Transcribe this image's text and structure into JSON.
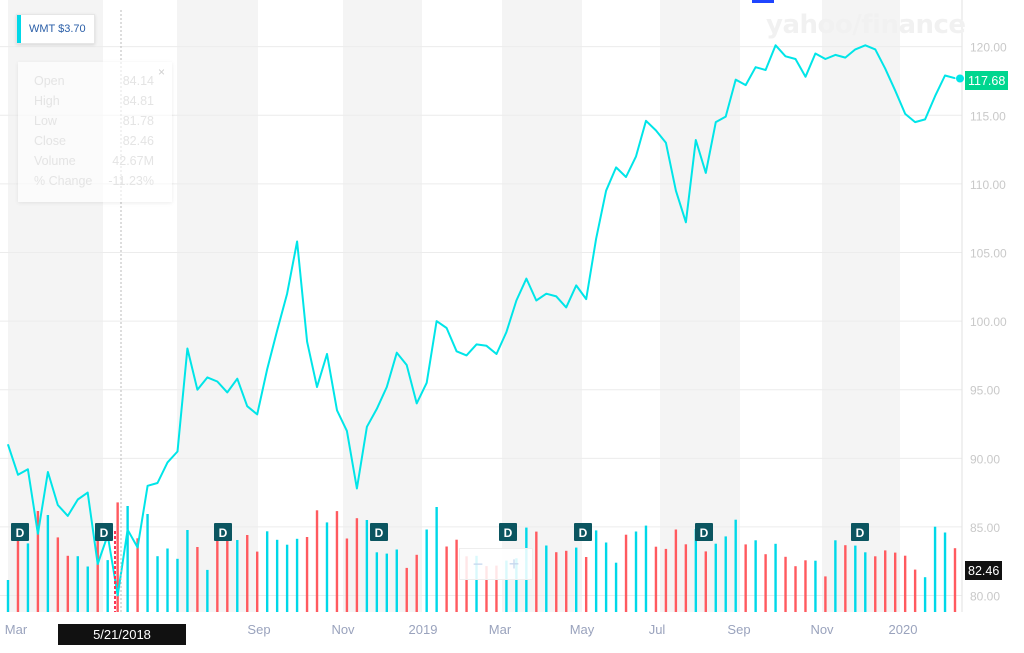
{
  "brand": {
    "watermark": "yahoo/finance"
  },
  "ticker": {
    "label": "WMT $3.70"
  },
  "tooltip": {
    "rows": [
      {
        "label": "Open",
        "value": "84.14"
      },
      {
        "label": "High",
        "value": "84.81"
      },
      {
        "label": "Low",
        "value": "81.78"
      },
      {
        "label": "Close",
        "value": "82.46"
      },
      {
        "label": "Volume",
        "value": "42.67M"
      },
      {
        "label": "% Change",
        "value": "-11.23%"
      }
    ],
    "close_glyph": "×"
  },
  "crosshair": {
    "date_label": "5/21/2018"
  },
  "zoom": {
    "minus": "−",
    "plus": "+"
  },
  "colors": {
    "line": "#00e5e8",
    "volume_up": "#00d8e8",
    "volume_down": "#ff5a5f",
    "last_tag": "#00d68f",
    "dividend": "#0b5560"
  },
  "chart_data": {
    "type": "line",
    "series": [
      {
        "values": [
          91.0,
          88.8,
          89.2,
          84.5,
          89.0,
          86.6,
          85.8,
          87.0,
          87.5,
          82.3,
          84.4,
          80.0,
          84.8,
          83.5,
          88.0,
          88.2,
          89.7,
          90.5,
          98.0,
          95.0,
          95.9,
          95.6,
          94.8,
          95.8,
          93.8,
          93.2,
          96.5,
          99.3,
          102.0,
          105.8,
          98.5,
          95.2,
          97.6,
          93.5,
          92.0,
          87.8,
          92.3,
          93.6,
          95.2,
          97.7,
          96.8,
          94.0,
          95.5,
          100.0,
          99.5,
          97.8,
          97.5,
          98.3,
          98.2,
          97.6,
          99.2,
          101.5,
          103.1,
          101.5,
          102.0,
          101.8,
          101.0,
          102.6,
          101.6,
          106.0,
          109.5,
          111.2,
          110.5,
          112.0,
          114.6,
          113.9,
          113.0,
          109.5,
          107.2,
          113.2,
          110.8,
          114.5,
          114.9,
          117.6,
          117.2,
          118.5,
          118.3,
          120.1,
          119.3,
          119.1,
          117.8,
          119.5,
          119.1,
          119.4,
          119.2,
          119.8,
          120.1,
          119.8,
          118.4,
          116.8,
          115.1,
          114.5,
          114.7,
          116.4,
          117.9,
          117.7
        ]
      }
    ],
    "y_ticks": [
      "120.00",
      "115.00",
      "110.00",
      "105.00",
      "100.00",
      "95.00",
      "90.00",
      "85.00",
      "80.00"
    ],
    "ylim": [
      78.8,
      123.4
    ],
    "x_ticks": [
      "Mar",
      "Jun",
      "Sep",
      "Nov",
      "2019",
      "Mar",
      "May",
      "Jul",
      "Sep",
      "Nov",
      "2020"
    ],
    "last_price": "117.68",
    "crosshair_close": "82.46",
    "dividend_marker": "D",
    "dividend_index": [
      1,
      12,
      28,
      45,
      63,
      72,
      85,
      103
    ]
  }
}
